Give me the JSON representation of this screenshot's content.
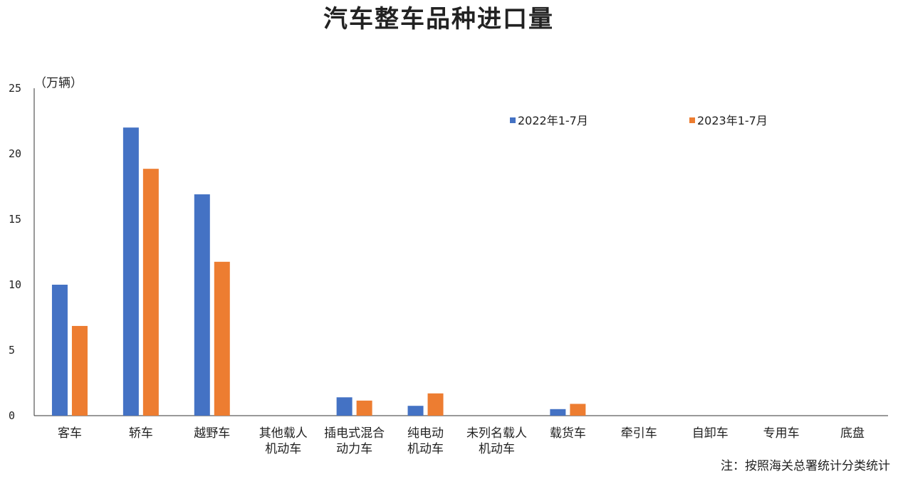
{
  "chart_data": {
    "type": "bar",
    "title": "汽车整车品种进口量",
    "unit_label": "（万辆）",
    "note": "注：按照海关总署统计分类统计",
    "ylim": [
      0,
      25
    ],
    "yticks": [
      "0",
      "5",
      "10",
      "15",
      "20",
      "25"
    ],
    "grid": false,
    "legend_position": "top-right",
    "categories": [
      [
        "客车"
      ],
      [
        "轿车"
      ],
      [
        "越野车"
      ],
      [
        "其他载人",
        "机动车"
      ],
      [
        "插电式混合",
        "动力车"
      ],
      [
        "纯电动",
        "机动车"
      ],
      [
        "未列名载人",
        "机动车"
      ],
      [
        "载货车"
      ],
      [
        "牵引车"
      ],
      [
        "自卸车"
      ],
      [
        "专用车"
      ],
      [
        "底盘"
      ]
    ],
    "series": [
      {
        "name": "2022年1-7月",
        "color": "#4472C4",
        "values": [
          10.0,
          22.0,
          16.9,
          0.0,
          1.4,
          0.75,
          0.0,
          0.5,
          0.0,
          0.0,
          0.0,
          0.0
        ]
      },
      {
        "name": "2023年1-7月",
        "color": "#ED7D31",
        "values": [
          6.85,
          18.85,
          11.75,
          0.0,
          1.15,
          1.7,
          0.0,
          0.9,
          0.0,
          0.0,
          0.0,
          0.0
        ]
      }
    ]
  }
}
